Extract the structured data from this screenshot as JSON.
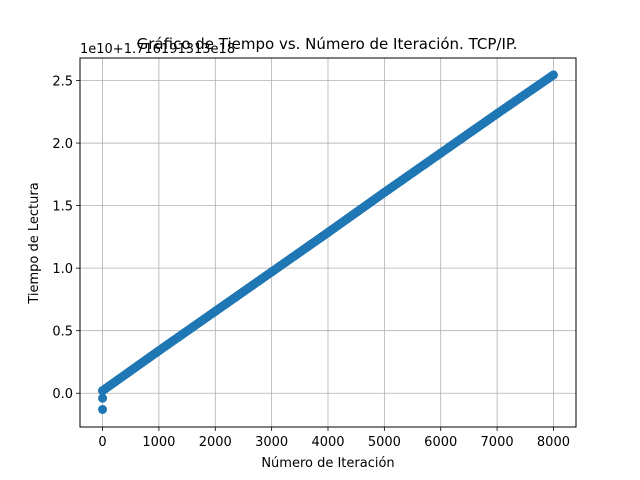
{
  "chart_data": {
    "type": "scatter",
    "title": "Gráfico de Tiempo vs. Número de Iteración. TCP/IP.",
    "xlabel": "Número de Iteración",
    "ylabel": "Tiempo de Lectura",
    "offset_text": "1e10+1.716191313e18",
    "xlim": [
      -400,
      8400
    ],
    "ylim": [
      -0.27,
      2.68
    ],
    "xticks": [
      0,
      1000,
      2000,
      3000,
      4000,
      5000,
      6000,
      7000,
      8000
    ],
    "xtick_labels": [
      "0",
      "1000",
      "2000",
      "3000",
      "4000",
      "5000",
      "6000",
      "7000",
      "8000"
    ],
    "yticks": [
      0.0,
      0.5,
      1.0,
      1.5,
      2.0,
      2.5
    ],
    "ytick_labels": [
      "0.0",
      "0.5",
      "1.0",
      "1.5",
      "2.0",
      "2.5"
    ],
    "grid": true,
    "series": [
      {
        "color": "#1f77b4",
        "points": [
          [
            0,
            -0.13
          ],
          [
            0,
            -0.04
          ],
          [
            0,
            0.02
          ],
          [
            1000,
            0.34
          ],
          [
            2000,
            0.655
          ],
          [
            3000,
            0.97
          ],
          [
            4000,
            1.285
          ],
          [
            5000,
            1.605
          ],
          [
            6000,
            1.92
          ],
          [
            7000,
            2.235
          ],
          [
            8000,
            2.545
          ]
        ]
      }
    ]
  }
}
